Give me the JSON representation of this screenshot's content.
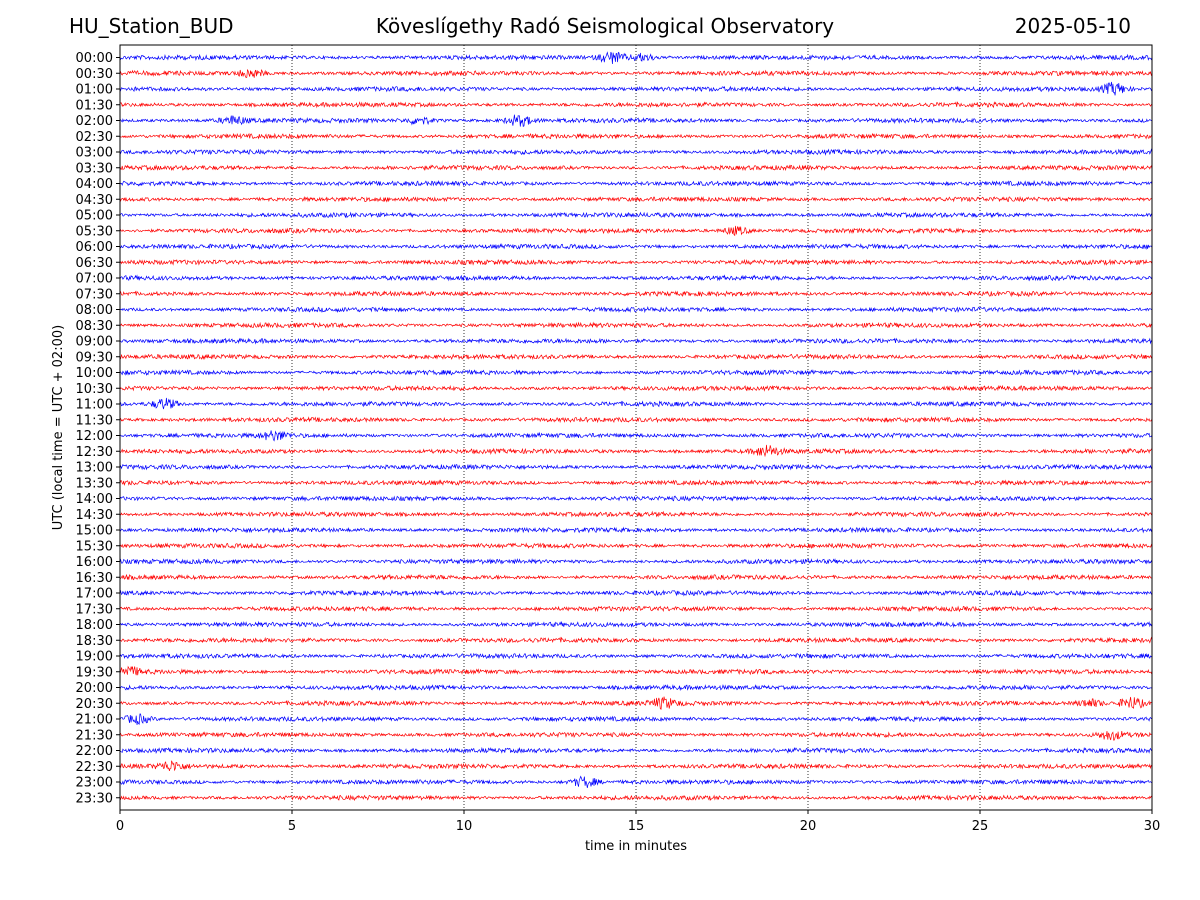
{
  "header": {
    "station": "HU_Station_BUD",
    "observatory": "Köveslígethy Radó Seismological Observatory",
    "date": "2025-05-10"
  },
  "chart_data": {
    "type": "line",
    "title": "Köveslígethy Radó Seismological Observatory",
    "xlabel": "time in minutes",
    "ylabel": "UTC (local time = UTC + 02:00)",
    "xlim": [
      0,
      30
    ],
    "x_ticks": [
      "0",
      "5",
      "10",
      "15",
      "20",
      "25",
      "30"
    ],
    "vertical_gridlines_at": [
      5,
      10,
      15,
      20,
      25
    ],
    "rows": [
      "00:00",
      "00:30",
      "01:00",
      "01:30",
      "02:00",
      "02:30",
      "03:00",
      "03:30",
      "04:00",
      "04:30",
      "05:00",
      "05:30",
      "06:00",
      "06:30",
      "07:00",
      "07:30",
      "08:00",
      "08:30",
      "09:00",
      "09:30",
      "10:00",
      "10:30",
      "11:00",
      "11:30",
      "12:00",
      "12:30",
      "13:00",
      "13:30",
      "14:00",
      "14:30",
      "15:00",
      "15:30",
      "16:00",
      "16:30",
      "17:00",
      "17:30",
      "18:00",
      "18:30",
      "19:00",
      "19:30",
      "20:00",
      "20:30",
      "21:00",
      "21:30",
      "22:00",
      "22:30",
      "23:00",
      "23:30"
    ],
    "trace_colors": [
      "#0000ff",
      "#ff0000"
    ],
    "bursts": [
      {
        "row": 0,
        "t": 14.3,
        "amp": 2.2
      },
      {
        "row": 0,
        "t": 15.2,
        "amp": 1.4
      },
      {
        "row": 1,
        "t": 3.8,
        "amp": 1.6
      },
      {
        "row": 2,
        "t": 28.9,
        "amp": 2.2
      },
      {
        "row": 4,
        "t": 3.3,
        "amp": 1.5
      },
      {
        "row": 4,
        "t": 8.7,
        "amp": 1.4
      },
      {
        "row": 4,
        "t": 11.6,
        "amp": 2.0
      },
      {
        "row": 11,
        "t": 17.9,
        "amp": 1.5
      },
      {
        "row": 22,
        "t": 1.3,
        "amp": 2.0
      },
      {
        "row": 24,
        "t": 4.5,
        "amp": 1.5
      },
      {
        "row": 25,
        "t": 18.8,
        "amp": 2.0
      },
      {
        "row": 39,
        "t": 0.2,
        "amp": 1.8
      },
      {
        "row": 41,
        "t": 15.8,
        "amp": 1.8
      },
      {
        "row": 41,
        "t": 29.4,
        "amp": 2.3
      },
      {
        "row": 41,
        "t": 28.2,
        "amp": 1.5
      },
      {
        "row": 42,
        "t": 0.5,
        "amp": 1.8
      },
      {
        "row": 43,
        "t": 28.8,
        "amp": 1.6
      },
      {
        "row": 45,
        "t": 1.5,
        "amp": 1.6
      },
      {
        "row": 46,
        "t": 13.5,
        "amp": 2.0
      }
    ]
  }
}
